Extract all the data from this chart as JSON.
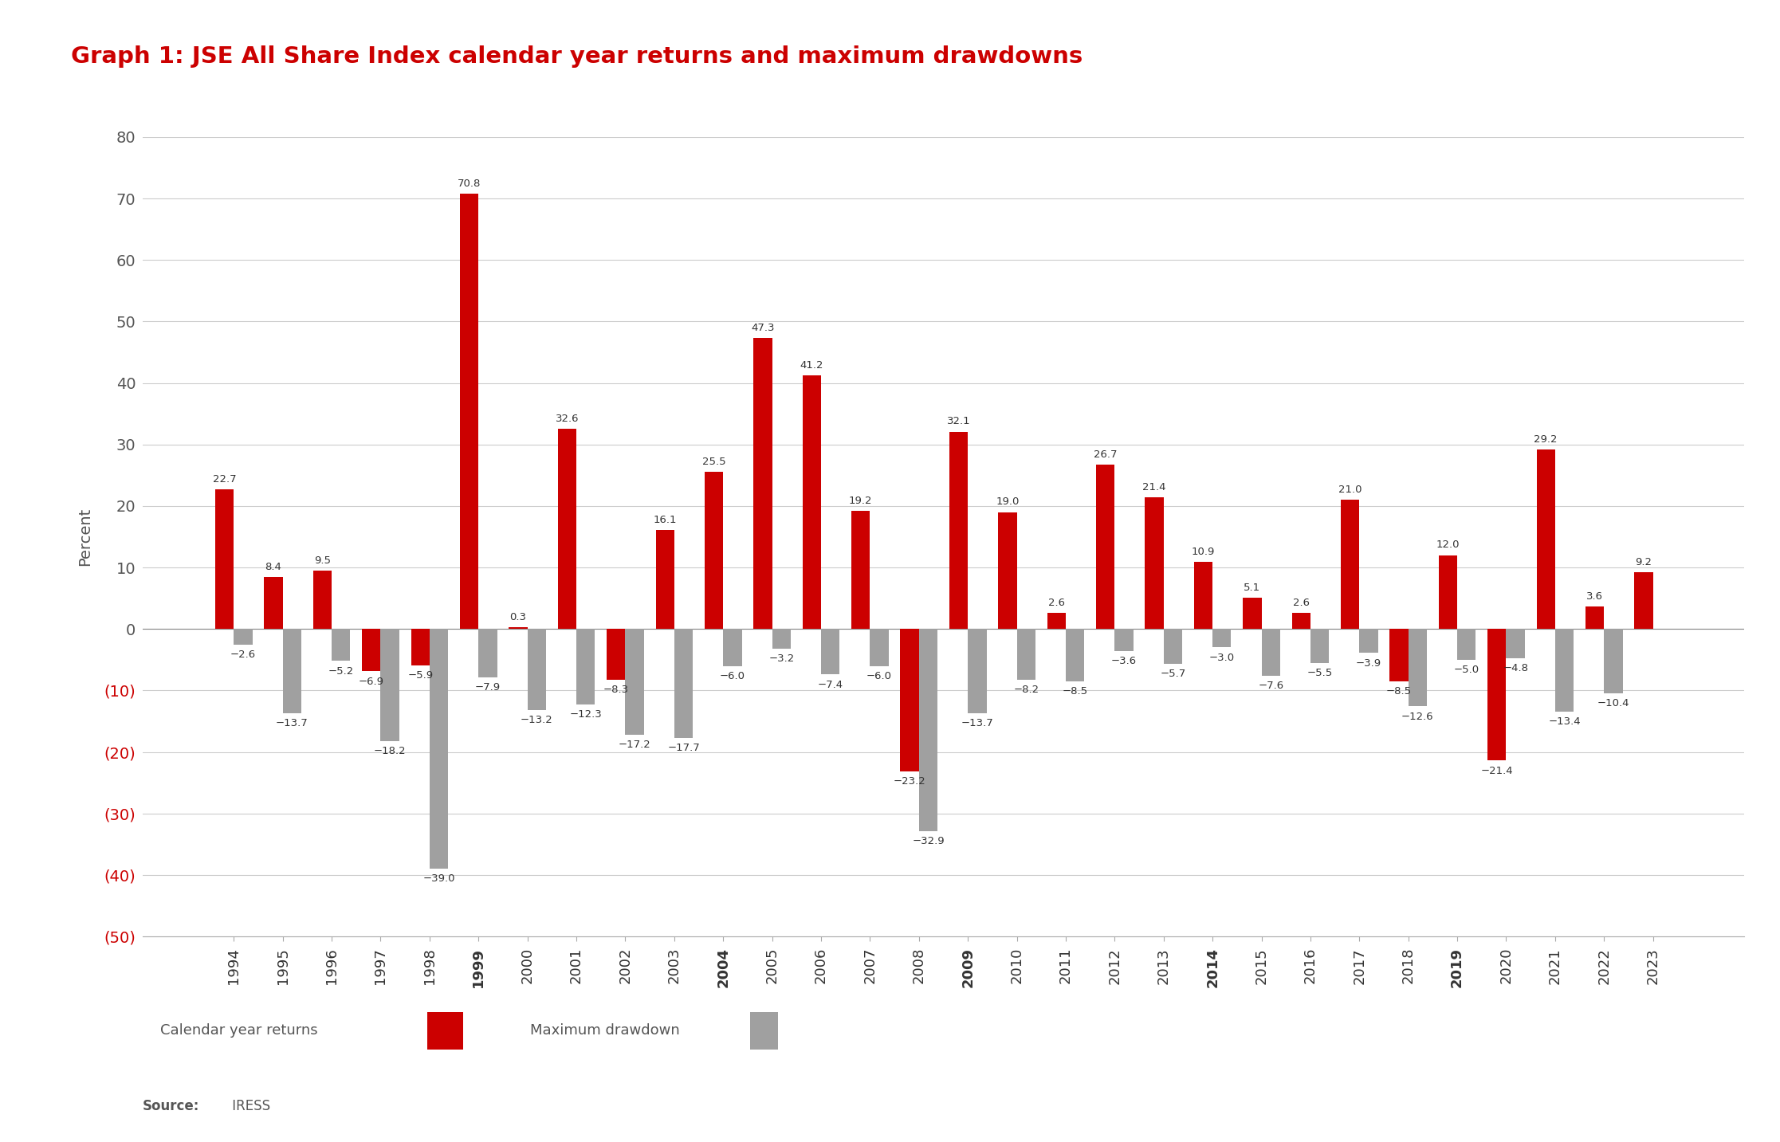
{
  "title": "Graph 1: JSE All Share Index calendar year returns and maximum drawdowns",
  "title_color": "#cc0000",
  "ylabel": "Percent",
  "source_bold": "Source:",
  "source_normal": " IRESS",
  "years": [
    1994,
    1995,
    1996,
    1997,
    1998,
    1999,
    2000,
    2001,
    2002,
    2003,
    2004,
    2005,
    2006,
    2007,
    2008,
    2009,
    2010,
    2011,
    2012,
    2013,
    2014,
    2015,
    2016,
    2017,
    2018,
    2019,
    2020,
    2021,
    2022,
    2023
  ],
  "returns": [
    22.7,
    8.4,
    9.5,
    -6.9,
    -5.9,
    70.8,
    0.3,
    32.6,
    -8.3,
    16.1,
    25.5,
    47.3,
    41.2,
    19.2,
    -23.2,
    32.1,
    19.0,
    2.6,
    26.7,
    21.4,
    10.9,
    5.1,
    2.6,
    21.0,
    -8.5,
    12.0,
    -21.4,
    29.2,
    3.6,
    9.2
  ],
  "drawdowns": [
    -2.6,
    -13.7,
    -5.2,
    -18.2,
    -39.0,
    -7.9,
    -13.2,
    -12.3,
    -17.2,
    -17.7,
    -6.0,
    -3.2,
    -7.4,
    -6.0,
    -32.9,
    -13.7,
    -8.2,
    -8.5,
    -3.6,
    -5.7,
    -3.0,
    -7.6,
    -5.5,
    -3.9,
    -12.6,
    -5.0,
    -4.8,
    -13.4,
    -10.4,
    0.0
  ],
  "bold_years": [
    1999,
    2004,
    2009,
    2014,
    2019
  ],
  "bar_color_return": "#cc0000",
  "bar_color_drawdown": "#a0a0a0",
  "background_color": "#ffffff",
  "ylim_min": -50,
  "ylim_max": 80,
  "yticks": [
    80,
    70,
    60,
    50,
    40,
    30,
    20,
    10,
    0,
    -10,
    -20,
    -30,
    -40,
    -50
  ],
  "negative_tick_color": "#cc0000",
  "positive_tick_color": "#555555",
  "legend_bg_color": "#e6e6e6",
  "label_fontsize": 9.5,
  "ytick_fontsize": 14,
  "xtick_fontsize": 13
}
